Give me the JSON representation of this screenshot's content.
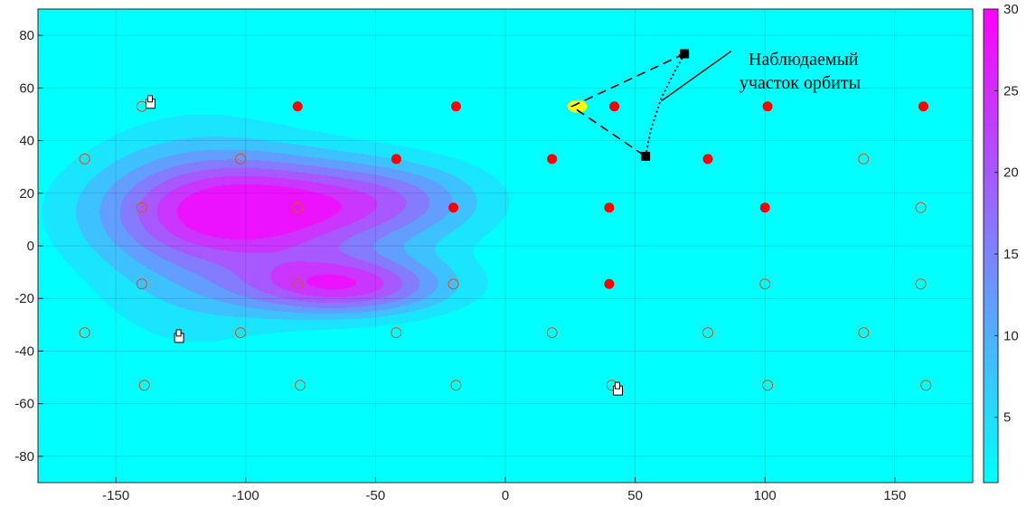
{
  "chart_data": {
    "type": "scatter",
    "title": "",
    "xlabel": "",
    "ylabel": "",
    "xlim": [
      -180,
      180
    ],
    "ylim": [
      -90,
      90
    ],
    "xticks": [
      -150,
      -100,
      -50,
      0,
      50,
      100,
      150
    ],
    "yticks": [
      -80,
      -60,
      -40,
      -20,
      0,
      20,
      40,
      60,
      80
    ],
    "grid": true,
    "background_color": "#00FFFF",
    "colorbar": {
      "range": [
        1,
        30
      ],
      "ticks": [
        5,
        10,
        15,
        20,
        25,
        30
      ],
      "colors": [
        "#00FFFF",
        "#FF00FF"
      ]
    },
    "contour_field": {
      "description_free": true,
      "blobs": [
        {
          "x": -92,
          "y": 14,
          "sx": 40,
          "sy": 14,
          "amp": 27
        },
        {
          "x": -62,
          "y": -15,
          "sx": 28,
          "sy": 8,
          "amp": 25
        },
        {
          "x": -120,
          "y": 5,
          "sx": 30,
          "sy": 30,
          "amp": 10
        },
        {
          "x": -40,
          "y": 18,
          "sx": 25,
          "sy": 10,
          "amp": 9
        }
      ],
      "levels": [
        4,
        8,
        12,
        16,
        20,
        24,
        28
      ]
    },
    "active_points": [
      [
        -80,
        53
      ],
      [
        -19,
        53
      ],
      [
        42,
        53
      ],
      [
        101,
        53
      ],
      [
        161,
        53
      ],
      [
        -42,
        33
      ],
      [
        18,
        33
      ],
      [
        78,
        33
      ],
      [
        -20,
        14.5
      ],
      [
        40,
        14.5
      ],
      [
        100,
        14.5
      ],
      [
        40,
        -14.5
      ]
    ],
    "inactive_points": [
      [
        -140,
        53
      ],
      [
        -162,
        33
      ],
      [
        -102,
        33
      ],
      [
        138,
        33
      ],
      [
        -140,
        14.5
      ],
      [
        -80,
        14.5
      ],
      [
        160,
        14.5
      ],
      [
        -140,
        -14.5
      ],
      [
        -80,
        -14.5
      ],
      [
        -20,
        -14.5
      ],
      [
        100,
        -14.5
      ],
      [
        160,
        -14.5
      ],
      [
        -162,
        -33
      ],
      [
        -102,
        -33
      ],
      [
        -42,
        -33
      ],
      [
        18,
        -33
      ],
      [
        78,
        -33
      ],
      [
        138,
        -33
      ],
      [
        -139,
        -53
      ],
      [
        -79,
        -53
      ],
      [
        -19,
        -53
      ],
      [
        41,
        -53
      ],
      [
        101,
        -53
      ],
      [
        162,
        -53
      ]
    ],
    "ground_stations": [
      [
        -137,
        54
      ],
      [
        -126,
        -35
      ],
      [
        43,
        -55
      ]
    ],
    "observed_arc": {
      "target": [
        27,
        53
      ],
      "track_start": [
        54,
        34
      ],
      "track_end": [
        69,
        73
      ],
      "track": [
        [
          54,
          34
        ],
        [
          56,
          44
        ],
        [
          60,
          56
        ],
        [
          64,
          64
        ],
        [
          69,
          73
        ]
      ]
    },
    "annotation": {
      "line1": "Наблюдаемый",
      "line2": "участок орбиты",
      "text_anchor": [
        95,
        70
      ],
      "pointer_from": [
        87,
        74
      ],
      "pointer_to": [
        60,
        55
      ]
    },
    "colors": {
      "active_point": "#FF0000",
      "inactive_point": "#D95319",
      "target": "#FFFF00",
      "marker": "#000000"
    }
  }
}
